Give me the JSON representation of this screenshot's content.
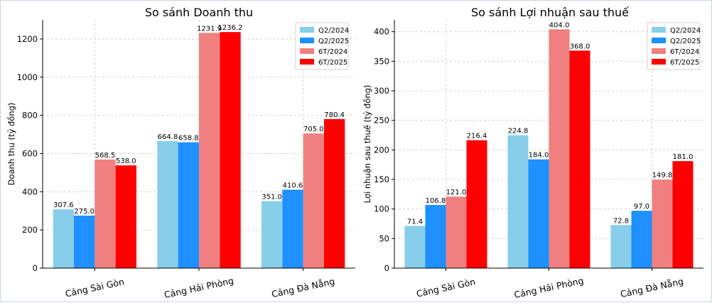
{
  "chart_data": [
    {
      "type": "bar",
      "title": "So sánh Doanh thu",
      "xlabel": "",
      "ylabel": "Doanh thu (tỷ đồng)",
      "categories": [
        "Cảng Sài Gòn",
        "Cảng Hải Phòng",
        "Cảng Đà Nẵng"
      ],
      "series": [
        {
          "name": "Q2/2024",
          "color": "#87ceeb",
          "values": [
            307.6,
            664.8,
            351.0
          ]
        },
        {
          "name": "Q2/2025",
          "color": "#1e90ff",
          "values": [
            275.0,
            658.8,
            410.6
          ]
        },
        {
          "name": "6T/2024",
          "color": "#f08080",
          "values": [
            568.5,
            1231.9,
            705.0
          ]
        },
        {
          "name": "6T/2025",
          "color": "#ff0000",
          "values": [
            538.0,
            1236.2,
            780.4
          ]
        }
      ],
      "ylim": [
        0,
        1300
      ],
      "yticks": [
        0,
        200,
        400,
        600,
        800,
        1000,
        1200
      ],
      "grid": true,
      "legend": "top-right"
    },
    {
      "type": "bar",
      "title": "So sánh Lợi nhuận sau thuế",
      "xlabel": "",
      "ylabel": "Lợi nhuận sau thuế (tỷ đồng)",
      "categories": [
        "Cảng Sài Gòn",
        "Cảng Hải Phòng",
        "Cảng Đà Nẵng"
      ],
      "series": [
        {
          "name": "Q2/2024",
          "color": "#87ceeb",
          "values": [
            71.4,
            224.8,
            72.8
          ]
        },
        {
          "name": "Q2/2025",
          "color": "#1e90ff",
          "values": [
            106.8,
            184.0,
            97.0
          ]
        },
        {
          "name": "6T/2024",
          "color": "#f08080",
          "values": [
            121.0,
            404.0,
            149.8
          ]
        },
        {
          "name": "6T/2025",
          "color": "#ff0000",
          "values": [
            216.4,
            368.0,
            181.0
          ]
        }
      ],
      "ylim": [
        0,
        420
      ],
      "yticks": [
        0,
        50,
        100,
        150,
        200,
        250,
        300,
        350,
        400
      ],
      "grid": true,
      "legend": "top-right"
    }
  ]
}
